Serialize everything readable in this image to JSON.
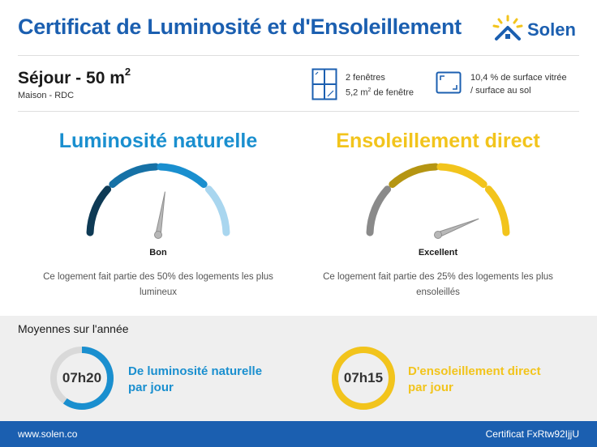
{
  "header": {
    "title": "Certificat de Luminosité et d'Ensoleillement",
    "brand": "Solen"
  },
  "room": {
    "title": "Séjour - 50 m",
    "title_exp": "2",
    "subtitle": "Maison - RDC"
  },
  "stats": {
    "windows_count": "2 fenêtres",
    "window_area": "5,2 m",
    "window_area_exp": "2",
    "window_area_suffix": " de fenêtre",
    "glazing_line1": "10,4 % de surface vitrée",
    "glazing_line2": "/ surface au sol"
  },
  "luminosity": {
    "title": "Luminosité naturelle",
    "rating": "Bon",
    "level": 0.55,
    "description_line1": "Ce logement fait partie des 50% des logements les plus",
    "description_line2": "lumineux"
  },
  "sunshine": {
    "title": "Ensoleillement direct",
    "rating": "Excellent",
    "level": 0.88,
    "description_line1": "Ce logement fait partie des 25% des logements les plus",
    "description_line2": "ensoleillés"
  },
  "averages": {
    "title": "Moyennes sur l'année",
    "luminosity_time": "07h20",
    "luminosity_fraction": 0.6,
    "luminosity_line1": "De luminosité naturelle",
    "luminosity_line2": "par jour",
    "sunshine_time": "07h15",
    "sunshine_fraction": 1.0,
    "sunshine_line1": "D'ensoleillement direct",
    "sunshine_line2": "par jour"
  },
  "footer": {
    "website": "www.solen.co",
    "certificate": "Certificat FxRtw92IjjU"
  },
  "colors": {
    "brand_blue": "#1b5fb0",
    "lum_blue": "#1a8fcf",
    "sun_yellow": "#f2c41c",
    "lum_seg": [
      "#0e3a55",
      "#1671a6",
      "#1a8fcf",
      "#a9d6ef"
    ],
    "sun_seg": [
      "#8a8a8a",
      "#b59512",
      "#f2c41c",
      "#f2c41c"
    ]
  }
}
